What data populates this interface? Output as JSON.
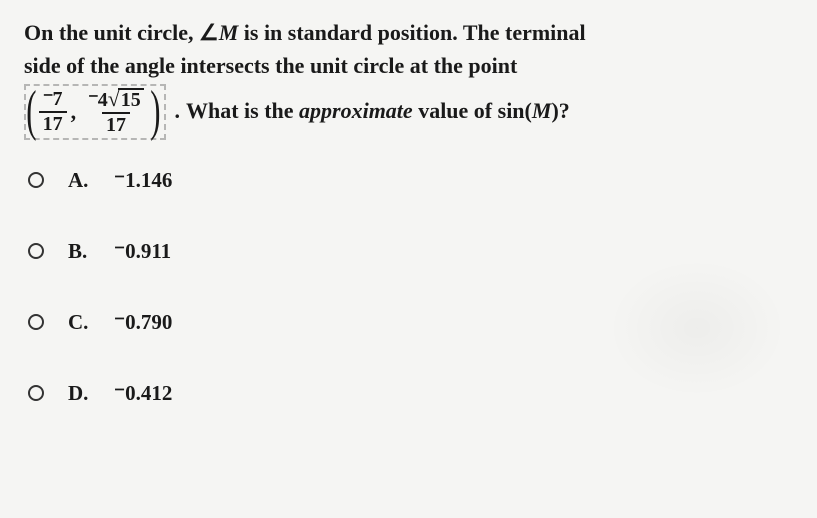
{
  "stem": {
    "line1_pre": "On the unit circle, ",
    "line1_angle": "∠",
    "line1_var": "M",
    "line1_post": " is in standard position. The terminal",
    "line2": "side of the angle intersects the unit circle at the point",
    "coord": {
      "x_num_neg": "⁻",
      "x_num_val": "7",
      "x_den": "17",
      "y_num_neg": "⁻",
      "y_num_coeff": "4",
      "y_num_rad": "15",
      "y_den": "17"
    },
    "tail_pre": "What is the ",
    "tail_em": "approximate",
    "tail_mid": " value of sin(",
    "tail_var": "M",
    "tail_post": ")?"
  },
  "options": [
    {
      "letter": "A.",
      "value": "⁻1.146"
    },
    {
      "letter": "B.",
      "value": "⁻0.911"
    },
    {
      "letter": "C.",
      "value": "⁻0.790"
    },
    {
      "letter": "D.",
      "value": "⁻0.412"
    }
  ],
  "style": {
    "background_color": "#f5f5f3",
    "text_color": "#1a1a1a",
    "font_family": "Georgia, Times New Roman, serif",
    "stem_fontsize": 22,
    "option_fontsize": 21,
    "option_gap": 46,
    "radio_border": "#333333"
  }
}
